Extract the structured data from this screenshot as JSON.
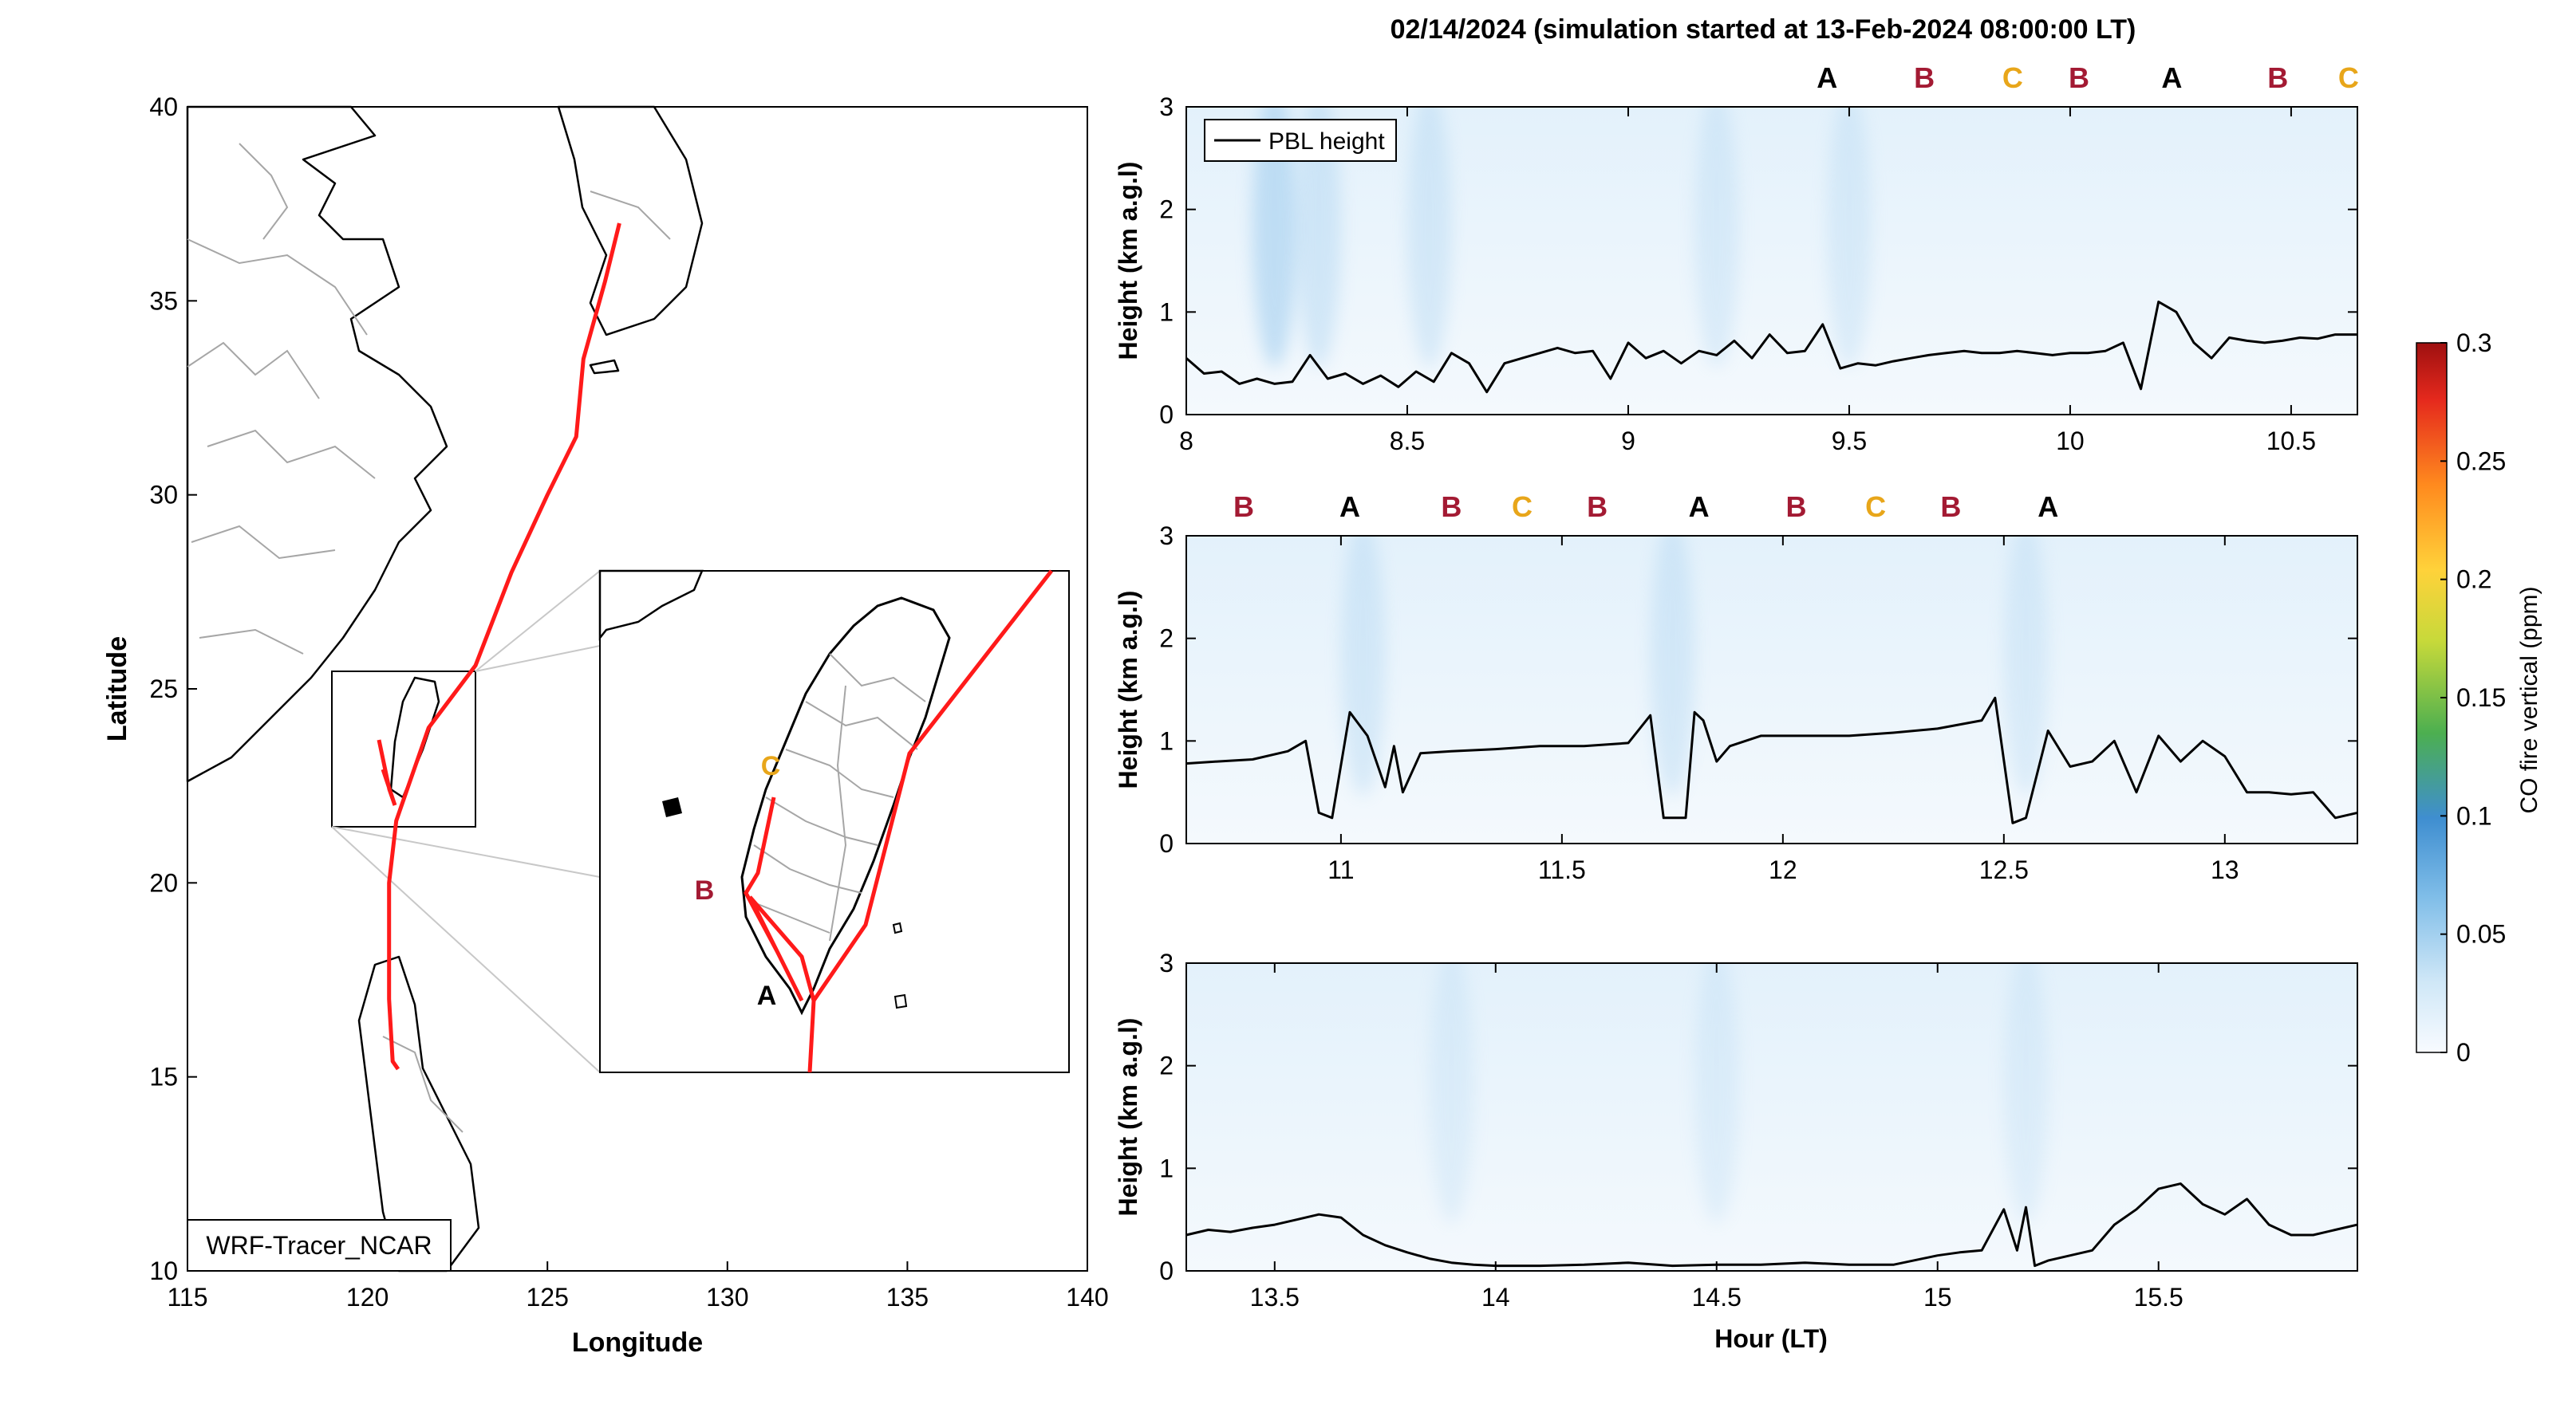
{
  "title": "02/14/2024 (simulation started at 13-Feb-2024 08:00:00 LT)",
  "colors": {
    "track": "#ff1a1a",
    "label_A": "#000000",
    "label_B": "#a31a33",
    "label_C": "#e8a61a",
    "grid_background": "#ffffff"
  },
  "map": {
    "xlabel": "Longitude",
    "ylabel": "Latitude",
    "xlim": [
      115,
      140
    ],
    "ylim": [
      10,
      40
    ],
    "xticks": [
      "115",
      "120",
      "125",
      "130",
      "135",
      "140"
    ],
    "yticks": [
      "10",
      "15",
      "20",
      "25",
      "30",
      "35",
      "40"
    ],
    "model_label": "WRF-Tracer_NCAR",
    "inset_labels": [
      "C",
      "B",
      "A"
    ]
  },
  "colorbar": {
    "label": "CO fire vertical (ppm)",
    "ticks": [
      "0",
      "0.05",
      "0.1",
      "0.15",
      "0.2",
      "0.25",
      "0.3"
    ],
    "range": [
      0,
      0.3
    ]
  },
  "legend_label": "PBL height",
  "xlabel_bottom": "Hour (LT)",
  "ylabel": "Height (km a.g.l)",
  "panels": [
    {
      "xlim": [
        8.0,
        10.65
      ],
      "xticks": [
        "8",
        "8.5",
        "9",
        "9.5",
        "10",
        "10.5"
      ],
      "yticks": [
        "0",
        "1",
        "2",
        "3"
      ],
      "markers": [
        {
          "label": "A",
          "x": 9.45
        },
        {
          "label": "B",
          "x": 9.67
        },
        {
          "label": "C",
          "x": 9.87
        },
        {
          "label": "B",
          "x": 10.02
        },
        {
          "label": "A",
          "x": 10.23
        },
        {
          "label": "B",
          "x": 10.47
        },
        {
          "label": "C",
          "x": 10.63
        }
      ]
    },
    {
      "xlim": [
        10.65,
        13.3
      ],
      "xticks": [
        "11",
        "11.5",
        "12",
        "12.5",
        "13"
      ],
      "yticks": [
        "0",
        "1",
        "2",
        "3"
      ],
      "markers": [
        {
          "label": "B",
          "x": 10.78
        },
        {
          "label": "A",
          "x": 11.02
        },
        {
          "label": "B",
          "x": 11.25
        },
        {
          "label": "C",
          "x": 11.41
        },
        {
          "label": "B",
          "x": 11.58
        },
        {
          "label": "A",
          "x": 11.81
        },
        {
          "label": "B",
          "x": 12.03
        },
        {
          "label": "C",
          "x": 12.21
        },
        {
          "label": "B",
          "x": 12.38
        },
        {
          "label": "A",
          "x": 12.6
        }
      ]
    },
    {
      "xlim": [
        13.3,
        15.95
      ],
      "xticks": [
        "13.5",
        "14",
        "14.5",
        "15",
        "15.5"
      ],
      "yticks": [
        "0",
        "1",
        "2",
        "3"
      ],
      "markers": []
    }
  ],
  "chart_data": [
    {
      "type": "line",
      "title": "02/14/2024 (simulation started at 13-Feb-2024 08:00:00 LT)",
      "xlabel": "",
      "ylabel": "Height (km a.g.l)",
      "xlim": [
        8.0,
        10.65
      ],
      "ylim": [
        0,
        3
      ],
      "series": [
        {
          "name": "PBL height",
          "x": [
            8.0,
            8.04,
            8.08,
            8.12,
            8.16,
            8.2,
            8.24,
            8.28,
            8.32,
            8.36,
            8.4,
            8.44,
            8.48,
            8.52,
            8.56,
            8.6,
            8.64,
            8.68,
            8.72,
            8.76,
            8.8,
            8.84,
            8.88,
            8.92,
            8.96,
            9.0,
            9.04,
            9.08,
            9.12,
            9.16,
            9.2,
            9.24,
            9.28,
            9.32,
            9.36,
            9.4,
            9.44,
            9.48,
            9.52,
            9.56,
            9.6,
            9.64,
            9.68,
            9.72,
            9.76,
            9.8,
            9.84,
            9.88,
            9.92,
            9.96,
            10.0,
            10.04,
            10.08,
            10.12,
            10.16,
            10.2,
            10.24,
            10.28,
            10.32,
            10.36,
            10.4,
            10.44,
            10.48,
            10.52,
            10.56,
            10.6,
            10.65
          ],
          "values": [
            0.55,
            0.4,
            0.42,
            0.3,
            0.35,
            0.3,
            0.32,
            0.58,
            0.35,
            0.4,
            0.3,
            0.38,
            0.27,
            0.42,
            0.32,
            0.6,
            0.5,
            0.22,
            0.5,
            0.55,
            0.6,
            0.65,
            0.6,
            0.62,
            0.35,
            0.7,
            0.55,
            0.62,
            0.5,
            0.62,
            0.58,
            0.72,
            0.55,
            0.78,
            0.6,
            0.62,
            0.88,
            0.45,
            0.5,
            0.48,
            0.52,
            0.55,
            0.58,
            0.6,
            0.62,
            0.6,
            0.6,
            0.62,
            0.6,
            0.58,
            0.6,
            0.6,
            0.62,
            0.7,
            0.25,
            1.1,
            1.0,
            0.7,
            0.55,
            0.75,
            0.72,
            0.7,
            0.72,
            0.75,
            0.74,
            0.78,
            0.78
          ]
        }
      ]
    },
    {
      "type": "line",
      "xlabel": "",
      "ylabel": "Height (km a.g.l)",
      "xlim": [
        10.65,
        13.3
      ],
      "ylim": [
        0,
        3
      ],
      "series": [
        {
          "name": "PBL height",
          "x": [
            10.65,
            10.72,
            10.8,
            10.88,
            10.92,
            10.95,
            10.98,
            11.02,
            11.06,
            11.1,
            11.12,
            11.14,
            11.18,
            11.25,
            11.35,
            11.45,
            11.55,
            11.65,
            11.7,
            11.73,
            11.78,
            11.8,
            11.82,
            11.85,
            11.88,
            11.95,
            12.05,
            12.15,
            12.25,
            12.35,
            12.45,
            12.48,
            12.52,
            12.55,
            12.6,
            12.65,
            12.7,
            12.75,
            12.8,
            12.85,
            12.9,
            12.95,
            13.0,
            13.05,
            13.1,
            13.15,
            13.2,
            13.25,
            13.3
          ],
          "values": [
            0.78,
            0.8,
            0.82,
            0.9,
            1.0,
            0.3,
            0.25,
            1.28,
            1.05,
            0.55,
            0.95,
            0.5,
            0.88,
            0.9,
            0.92,
            0.95,
            0.95,
            0.98,
            1.25,
            0.25,
            0.25,
            1.28,
            1.2,
            0.8,
            0.95,
            1.05,
            1.05,
            1.05,
            1.08,
            1.12,
            1.2,
            1.42,
            0.2,
            0.25,
            1.1,
            0.75,
            0.8,
            1.0,
            0.5,
            1.05,
            0.8,
            1.0,
            0.85,
            0.5,
            0.5,
            0.48,
            0.5,
            0.25,
            0.3
          ]
        }
      ]
    },
    {
      "type": "line",
      "xlabel": "Hour (LT)",
      "ylabel": "Height (km a.g.l)",
      "xlim": [
        13.3,
        15.95
      ],
      "ylim": [
        0,
        3
      ],
      "series": [
        {
          "name": "PBL height",
          "x": [
            13.3,
            13.35,
            13.4,
            13.45,
            13.5,
            13.55,
            13.6,
            13.65,
            13.7,
            13.75,
            13.8,
            13.85,
            13.9,
            13.95,
            14.0,
            14.1,
            14.2,
            14.3,
            14.4,
            14.5,
            14.6,
            14.7,
            14.8,
            14.9,
            15.0,
            15.05,
            15.1,
            15.15,
            15.18,
            15.2,
            15.22,
            15.25,
            15.3,
            15.35,
            15.4,
            15.45,
            15.5,
            15.55,
            15.6,
            15.65,
            15.7,
            15.75,
            15.8,
            15.85,
            15.9,
            15.95
          ],
          "values": [
            0.35,
            0.4,
            0.38,
            0.42,
            0.45,
            0.5,
            0.55,
            0.52,
            0.35,
            0.25,
            0.18,
            0.12,
            0.08,
            0.06,
            0.05,
            0.05,
            0.06,
            0.08,
            0.05,
            0.06,
            0.06,
            0.08,
            0.06,
            0.06,
            0.15,
            0.18,
            0.2,
            0.6,
            0.2,
            0.62,
            0.05,
            0.1,
            0.15,
            0.2,
            0.45,
            0.6,
            0.8,
            0.85,
            0.65,
            0.55,
            0.7,
            0.45,
            0.35,
            0.35,
            0.4,
            0.45
          ]
        }
      ]
    },
    {
      "type": "line",
      "title": "",
      "xlabel": "Longitude",
      "ylabel": "Latitude",
      "xlim": [
        115,
        140
      ],
      "ylim": [
        10,
        40
      ],
      "series": [
        {
          "name": "",
          "x": [
            127.0,
            126.6,
            126.0,
            125.8,
            125.0,
            124.0,
            123.0,
            121.7,
            121.1,
            120.8,
            120.6,
            120.6,
            120.7,
            120.85
          ],
          "y": [
            37.0,
            35.5,
            33.5,
            31.5,
            30.0,
            28.0,
            25.6,
            24.0,
            22.4,
            21.6,
            20.0,
            17.0,
            15.4,
            15.2
          ]
        }
      ]
    }
  ]
}
